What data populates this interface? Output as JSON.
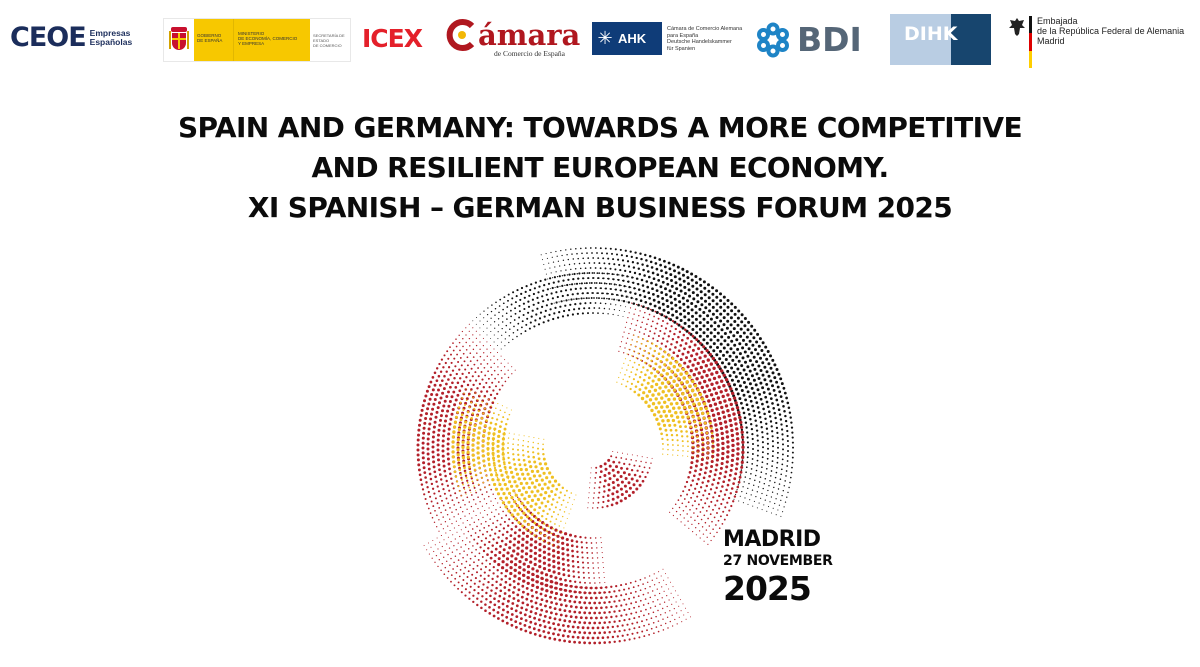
{
  "logos": {
    "ceoe": {
      "name": "CEOE",
      "sub_line1": "Empresas",
      "sub_line2": "Españolas"
    },
    "gobierno": {
      "col1_line1": "GOBIERNO",
      "col1_line2": "DE ESPAÑA",
      "col2_line1": "MINISTERIO",
      "col2_line2": "DE ECONOMÍA, COMERCIO",
      "col2_line3": "Y EMPRESA",
      "col3_line1": "SECRETARÍA DE ESTADO",
      "col3_line2": "DE COMERCIO"
    },
    "icex": {
      "name": "ICEX"
    },
    "camara": {
      "name": "ámara",
      "sub": "de Comercio de España"
    },
    "ahk": {
      "label": "AHK",
      "line1": "Cámara de Comercio Alemana",
      "line2": "para España",
      "line3": "Deutsche Handelskammer",
      "line4": "für Spanien"
    },
    "bdi": {
      "name": "BDI"
    },
    "dihk": {
      "name": "DIHK"
    },
    "embajada": {
      "line1": "Embajada",
      "line2": "de la República Federal de Alemania",
      "line3": "Madrid"
    }
  },
  "headline": {
    "line1": "SPAIN AND GERMANY: TOWARDS A MORE COMPETITIVE",
    "line2": "AND RESILIENT EUROPEAN ECONOMY.",
    "line3": "XI SPANISH – GERMAN BUSINESS FORUM 2025"
  },
  "event": {
    "city": "MADRID",
    "date": "27 NOVEMBER",
    "year": "2025"
  },
  "colors": {
    "black": "#111111",
    "red": "#b3202a",
    "gold": "#efc022",
    "ceoe_blue": "#1b2d5b",
    "icex_red": "#e4202a",
    "camara_red": "#b0171f",
    "ahk_blue": "#0f3c78",
    "bdi_blue": "#1e84c6",
    "bdi_gray": "#556677",
    "dihk_light": "#b9cde3",
    "dihk_dark": "#17456e"
  }
}
